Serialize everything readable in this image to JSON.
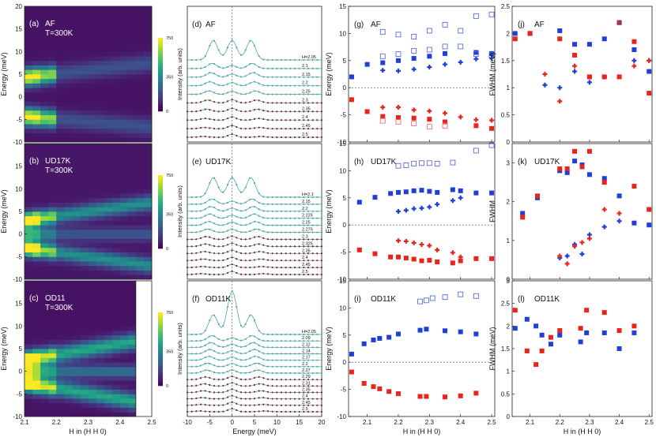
{
  "colors": {
    "red": "#e8241c",
    "blue": "#1f3fd8",
    "hollow_blue": "#5a6fe0",
    "hollow_red": "#f07070",
    "fit": "#3a9a94",
    "data_upper": "#4aaea8",
    "data_lower": "#8c1e1e"
  },
  "heatmaps": {
    "panels": [
      {
        "tag": "(a)",
        "name": "AF",
        "temp": "T=300K",
        "end_x": 2.5,
        "cmax": 750
      },
      {
        "tag": "(b)",
        "name": "UD17K",
        "temp": "T=300K",
        "end_x": 2.5,
        "cmax": 750
      },
      {
        "tag": "(c)",
        "name": "OD11",
        "temp": "T=300K",
        "end_x": 2.45,
        "cmax": 750
      }
    ],
    "ylabel": "Energy (meV)",
    "xlabel": "H in (H H 0)",
    "yticks": [
      "20",
      "15",
      "10",
      "5",
      "0",
      "-5",
      "-10"
    ],
    "xticks": [
      "2.1",
      "2.2",
      "2.3",
      "2.4",
      "2.5"
    ],
    "cbar_ticks": [
      "750",
      "350",
      "0"
    ]
  },
  "spectra": {
    "panels": [
      {
        "tag": "(d)",
        "name": "AF",
        "labels": [
          "H=2.05",
          "2.1",
          "2.15",
          "2.2",
          "2.25",
          "2.3",
          "2.35",
          "2.4",
          "2.45",
          "2.5"
        ]
      },
      {
        "tag": "(e)",
        "name": "UD17K",
        "labels": [
          "H=2.1",
          "2.15",
          "2.2",
          "2.225",
          "2.25",
          "2.275",
          "2.3",
          "2.325",
          "2.35",
          "2.4",
          "2.45",
          "2.5"
        ]
      },
      {
        "tag": "(f)",
        "name": "OD11K",
        "labels": [
          "H=2.05",
          "2.09",
          "2.12",
          "2.14",
          "2.17",
          "2.2",
          "2.27",
          "2.29",
          "2.31",
          "2.35",
          "2.4",
          "2.45",
          "2.5"
        ]
      }
    ],
    "ylabel": "Intensity (arb. units)",
    "xlabel": "Energy (meV)",
    "xticks": [
      "-10",
      "-5",
      "0",
      "5",
      "10",
      "15",
      "20"
    ]
  },
  "chart_data": [
    {
      "type": "scatter",
      "id": "g",
      "tag": "(g)",
      "title": "AF",
      "ylabel": "Energy (meV)",
      "ylim": [
        -10,
        15
      ],
      "series": [
        {
          "name": "blue squares",
          "style": "sq-blue",
          "x": [
            2.05,
            2.1,
            2.15,
            2.2,
            2.25,
            2.3,
            2.35,
            2.45,
            2.5
          ],
          "y": [
            2.0,
            4.3,
            4.6,
            5.0,
            5.4,
            5.8,
            6.3,
            6.5,
            6.3
          ]
        },
        {
          "name": "blue crosses",
          "style": "cr-blue",
          "x": [
            2.15,
            2.2,
            2.25,
            2.3,
            2.35,
            2.4,
            2.45,
            2.5
          ],
          "y": [
            3.2,
            3.1,
            3.4,
            3.8,
            4.3,
            4.7,
            5.3,
            5.5
          ]
        },
        {
          "name": "hollow blue",
          "style": "ho-blue",
          "x": [
            2.15,
            2.2,
            2.25,
            2.3,
            2.35,
            2.4,
            2.45,
            2.5
          ],
          "y": [
            10.3,
            9.8,
            9.4,
            10.5,
            11.6,
            10.5,
            13.2,
            13.5
          ]
        },
        {
          "name": "hollow blue low",
          "style": "ho-blue",
          "x": [
            2.15,
            2.2,
            2.25,
            2.3,
            2.35,
            2.4,
            2.45,
            2.5
          ],
          "y": [
            5.8,
            6.2,
            6.8,
            7.0,
            7.6,
            7.6,
            6.2,
            6.0
          ]
        },
        {
          "name": "red squares",
          "style": "sq-red",
          "x": [
            2.05,
            2.1,
            2.15,
            2.2,
            2.25,
            2.3,
            2.35,
            2.45,
            2.5
          ],
          "y": [
            -2.2,
            -4.4,
            -5.3,
            -5.5,
            -5.6,
            -5.8,
            -6.3,
            -7.0,
            -7.5
          ]
        },
        {
          "name": "red crosses",
          "style": "cr-red",
          "x": [
            2.15,
            2.2,
            2.25,
            2.3,
            2.35,
            2.4,
            2.45,
            2.5
          ],
          "y": [
            -3.6,
            -3.6,
            -4.1,
            -4.3,
            -4.7,
            -5.4,
            -5.9,
            -6.0
          ]
        },
        {
          "name": "hollow red",
          "style": "ho-red",
          "x": [
            2.15,
            2.2,
            2.25,
            2.3,
            2.35
          ],
          "y": [
            -6.1,
            -6.3,
            -6.6,
            -7.2,
            -7.0
          ]
        }
      ]
    },
    {
      "type": "scatter",
      "id": "h",
      "tag": "(h)",
      "title": "UD17K",
      "ylabel": "Energy (meV)",
      "ylim": [
        -10,
        15
      ],
      "series": [
        {
          "name": "blue squares",
          "style": "sq-blue",
          "x": [
            2.075,
            2.125,
            2.175,
            2.2,
            2.225,
            2.25,
            2.275,
            2.3,
            2.325,
            2.375,
            2.4,
            2.45,
            2.5
          ],
          "y": [
            4.2,
            5.1,
            5.8,
            6.0,
            6.1,
            6.3,
            6.4,
            6.2,
            6.0,
            6.5,
            6.3,
            5.9,
            5.9
          ]
        },
        {
          "name": "blue crosses",
          "style": "cr-blue",
          "x": [
            2.2,
            2.225,
            2.25,
            2.275,
            2.3,
            2.325,
            2.375,
            2.4
          ],
          "y": [
            2.5,
            2.7,
            3.0,
            3.1,
            3.3,
            3.8,
            4.5,
            5.0
          ]
        },
        {
          "name": "hollow blue",
          "style": "ho-blue",
          "x": [
            2.2,
            2.225,
            2.25,
            2.275,
            2.3,
            2.325,
            2.375,
            2.45,
            2.5
          ],
          "y": [
            10.9,
            11.0,
            11.3,
            11.4,
            11.4,
            11.3,
            11.5,
            13.7,
            14.7
          ]
        },
        {
          "name": "red squares",
          "style": "sq-red",
          "x": [
            2.075,
            2.125,
            2.175,
            2.2,
            2.225,
            2.25,
            2.275,
            2.3,
            2.325,
            2.375,
            2.4,
            2.45,
            2.5
          ],
          "y": [
            -4.6,
            -5.3,
            -5.9,
            -5.9,
            -6.1,
            -6.3,
            -6.6,
            -6.5,
            -6.8,
            -7.0,
            -6.6,
            -6.2,
            -6.2
          ]
        },
        {
          "name": "red crosses",
          "style": "cr-red",
          "x": [
            2.2,
            2.225,
            2.25,
            2.275,
            2.3,
            2.325,
            2.375,
            2.4
          ],
          "y": [
            -2.9,
            -3.0,
            -3.3,
            -3.6,
            -3.8,
            -4.6,
            -5.1,
            -5.9
          ]
        }
      ]
    },
    {
      "type": "scatter",
      "id": "i",
      "tag": "(i)",
      "title": "OD11K",
      "ylabel": "Energy (meV)",
      "xlabel": "H in (H H 0)",
      "ylim": [
        -10,
        15
      ],
      "series": [
        {
          "name": "blue squares",
          "style": "sq-blue",
          "x": [
            2.05,
            2.09,
            2.12,
            2.14,
            2.17,
            2.2,
            2.27,
            2.29,
            2.35,
            2.4,
            2.45
          ],
          "y": [
            1.5,
            3.4,
            4.1,
            4.4,
            4.6,
            5.2,
            5.9,
            6.1,
            5.8,
            5.6,
            5.2
          ]
        },
        {
          "name": "hollow blue",
          "style": "ho-blue",
          "x": [
            2.27,
            2.29,
            2.31,
            2.35,
            2.4,
            2.45
          ],
          "y": [
            11.2,
            11.4,
            11.8,
            12.0,
            12.5,
            12.2
          ]
        },
        {
          "name": "red squares",
          "style": "sq-red",
          "x": [
            2.05,
            2.09,
            2.12,
            2.14,
            2.17,
            2.2,
            2.27,
            2.29,
            2.35,
            2.4,
            2.45
          ],
          "y": [
            -1.8,
            -3.9,
            -4.5,
            -4.9,
            -5.4,
            -5.8,
            -6.3,
            -6.3,
            -6.4,
            -6.2,
            -5.7
          ]
        }
      ]
    },
    {
      "type": "scatter",
      "id": "j",
      "tag": "(j)",
      "title": "AF",
      "ylabel": "FWHM (meV)",
      "ylim": [
        0,
        2.5
      ],
      "series": [
        {
          "name": "blue squares",
          "style": "sq-blue",
          "x": [
            2.05,
            2.1,
            2.2,
            2.25,
            2.3,
            2.35,
            2.4,
            2.45,
            2.5
          ],
          "y": [
            2.0,
            2.0,
            2.05,
            1.8,
            1.8,
            1.9,
            2.2,
            1.7,
            1.3
          ]
        },
        {
          "name": "red squares",
          "style": "sq-red",
          "x": [
            2.05,
            2.1,
            2.2,
            2.25,
            2.3,
            2.35,
            2.4,
            2.45,
            2.5
          ],
          "y": [
            1.9,
            2.0,
            1.9,
            1.6,
            1.2,
            1.2,
            1.2,
            1.85,
            0.9
          ]
        },
        {
          "name": "blue crosses",
          "style": "cr-blue",
          "x": [
            2.15,
            2.2,
            2.25,
            2.3,
            2.35,
            2.4,
            2.45,
            2.5
          ],
          "y": [
            1.05,
            1.0,
            1.3,
            1.1,
            1.2,
            2.2,
            1.5,
            1.5
          ]
        },
        {
          "name": "red crosses",
          "style": "cr-red",
          "x": [
            2.15,
            2.2,
            2.25,
            2.3,
            2.35,
            2.4,
            2.45,
            2.5
          ],
          "y": [
            1.25,
            0.75,
            1.4,
            1.2,
            1.2,
            2.2,
            1.4,
            1.5
          ]
        }
      ]
    },
    {
      "type": "scatter",
      "id": "k",
      "tag": "(k)",
      "title": "UD17K",
      "ylabel": "FWHM",
      "ylim": [
        0,
        3.5
      ],
      "series": [
        {
          "name": "blue squares",
          "style": "sq-blue",
          "x": [
            2.075,
            2.125,
            2.2,
            2.225,
            2.25,
            2.275,
            2.3,
            2.35,
            2.4,
            2.45,
            2.5
          ],
          "y": [
            1.7,
            2.1,
            2.8,
            2.75,
            3.05,
            2.95,
            2.7,
            2.6,
            2.15,
            1.45,
            1.4
          ]
        },
        {
          "name": "red squares",
          "style": "sq-red",
          "x": [
            2.075,
            2.125,
            2.2,
            2.225,
            2.25,
            2.275,
            2.3,
            2.35,
            2.45,
            2.5
          ],
          "y": [
            1.6,
            2.15,
            2.85,
            2.85,
            3.3,
            2.9,
            3.3,
            2.5,
            2.4,
            1.8
          ]
        },
        {
          "name": "blue crosses",
          "style": "cr-blue",
          "x": [
            2.2,
            2.225,
            2.25,
            2.275,
            2.3,
            2.35,
            2.4
          ],
          "y": [
            0.55,
            0.6,
            0.9,
            0.65,
            1.15,
            1.35,
            1.5
          ]
        },
        {
          "name": "red crosses",
          "style": "cr-red",
          "x": [
            2.2,
            2.225,
            2.25,
            2.275,
            2.3,
            2.35,
            2.4
          ],
          "y": [
            0.6,
            0.4,
            0.85,
            0.95,
            1.05,
            1.8,
            1.7
          ]
        }
      ]
    },
    {
      "type": "scatter",
      "id": "l",
      "tag": "(l)",
      "title": "OD11K",
      "ylabel": "FWHM (meV)",
      "xlabel": "H in (H H 0)",
      "ylim": [
        0,
        3
      ],
      "series": [
        {
          "name": "blue squares",
          "style": "sq-blue",
          "x": [
            2.05,
            2.09,
            2.12,
            2.14,
            2.17,
            2.2,
            2.27,
            2.29,
            2.35,
            2.4,
            2.45
          ],
          "y": [
            1.95,
            2.15,
            2.0,
            1.8,
            1.6,
            1.8,
            1.65,
            1.85,
            1.85,
            1.5,
            1.85
          ]
        },
        {
          "name": "red squares",
          "style": "sq-red",
          "x": [
            2.05,
            2.09,
            2.12,
            2.14,
            2.17,
            2.2,
            2.27,
            2.29,
            2.35,
            2.4,
            2.45
          ],
          "y": [
            2.35,
            1.45,
            1.15,
            1.45,
            1.75,
            1.9,
            1.95,
            2.35,
            2.3,
            1.9,
            2.0
          ]
        }
      ]
    }
  ],
  "scatter_axes": {
    "xticks": [
      "2.1",
      "2.2",
      "2.3",
      "2.4",
      "2.5"
    ],
    "energy_yticks": [
      "15",
      "10",
      "5",
      "0",
      "-5",
      "-10"
    ],
    "fwhm_j_yticks": [
      "2.5",
      "2",
      "1.5",
      "1",
      "0.5",
      "0"
    ],
    "fwhm_k_yticks": [
      "3",
      "2",
      "1",
      "0"
    ],
    "fwhm_l_yticks": [
      "3",
      "2.5",
      "2",
      "1.5",
      "1",
      "0.5",
      "0"
    ]
  }
}
